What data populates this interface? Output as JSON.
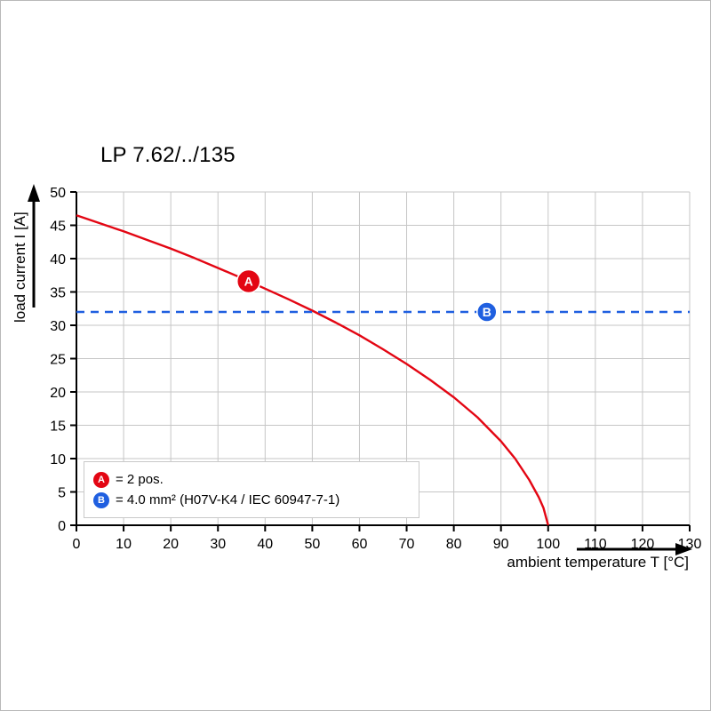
{
  "chart_title": "LP 7.62/../135",
  "axes": {
    "ylabel": "load current I [A]",
    "xlabel": "ambient temperature T [°C]"
  },
  "legend": {
    "items": [
      {
        "badge": "A",
        "color": "#e30613",
        "text": "= 2 pos."
      },
      {
        "badge": "B",
        "color": "#1f5fe0",
        "text": "= 4.0 mm² (H07V-K4 / IEC 60947-7-1)"
      }
    ]
  },
  "chart_data": {
    "type": "line",
    "title": "LP 7.62/../135",
    "xlabel": "ambient temperature T [°C]",
    "ylabel": "load current I [A]",
    "xlim": [
      0,
      130
    ],
    "ylim": [
      0,
      50
    ],
    "x_ticks": [
      0,
      10,
      20,
      30,
      40,
      50,
      60,
      70,
      80,
      90,
      100,
      110,
      120,
      130
    ],
    "y_ticks": [
      0,
      5,
      10,
      15,
      20,
      25,
      30,
      35,
      40,
      45,
      50
    ],
    "grid": true,
    "grid_color": "#c6c6c6",
    "series": [
      {
        "name": "derating-curve",
        "color": "#e30613",
        "style": "solid",
        "points": [
          [
            0,
            46.5
          ],
          [
            5,
            45.3
          ],
          [
            10,
            44.1
          ],
          [
            15,
            42.8
          ],
          [
            20,
            41.5
          ],
          [
            25,
            40.1
          ],
          [
            30,
            38.6
          ],
          [
            35,
            37.1
          ],
          [
            40,
            35.5
          ],
          [
            45,
            33.9
          ],
          [
            50,
            32.2
          ],
          [
            55,
            30.4
          ],
          [
            60,
            28.5
          ],
          [
            65,
            26.4
          ],
          [
            70,
            24.2
          ],
          [
            75,
            21.8
          ],
          [
            80,
            19.2
          ],
          [
            85,
            16.2
          ],
          [
            90,
            12.6
          ],
          [
            93,
            10.0
          ],
          [
            96,
            6.8
          ],
          [
            98,
            4.2
          ],
          [
            99,
            2.6
          ],
          [
            100,
            0
          ]
        ]
      },
      {
        "name": "rated-current-line",
        "color": "#1f5fe0",
        "style": "dashed",
        "points": [
          [
            0,
            32
          ],
          [
            130,
            32
          ]
        ]
      }
    ],
    "markers": [
      {
        "label": "A",
        "x": 36.5,
        "y": 36.6,
        "color": "#e30613",
        "r": 13
      },
      {
        "label": "B",
        "x": 87,
        "y": 32,
        "color": "#1f5fe0",
        "r": 11
      }
    ]
  }
}
